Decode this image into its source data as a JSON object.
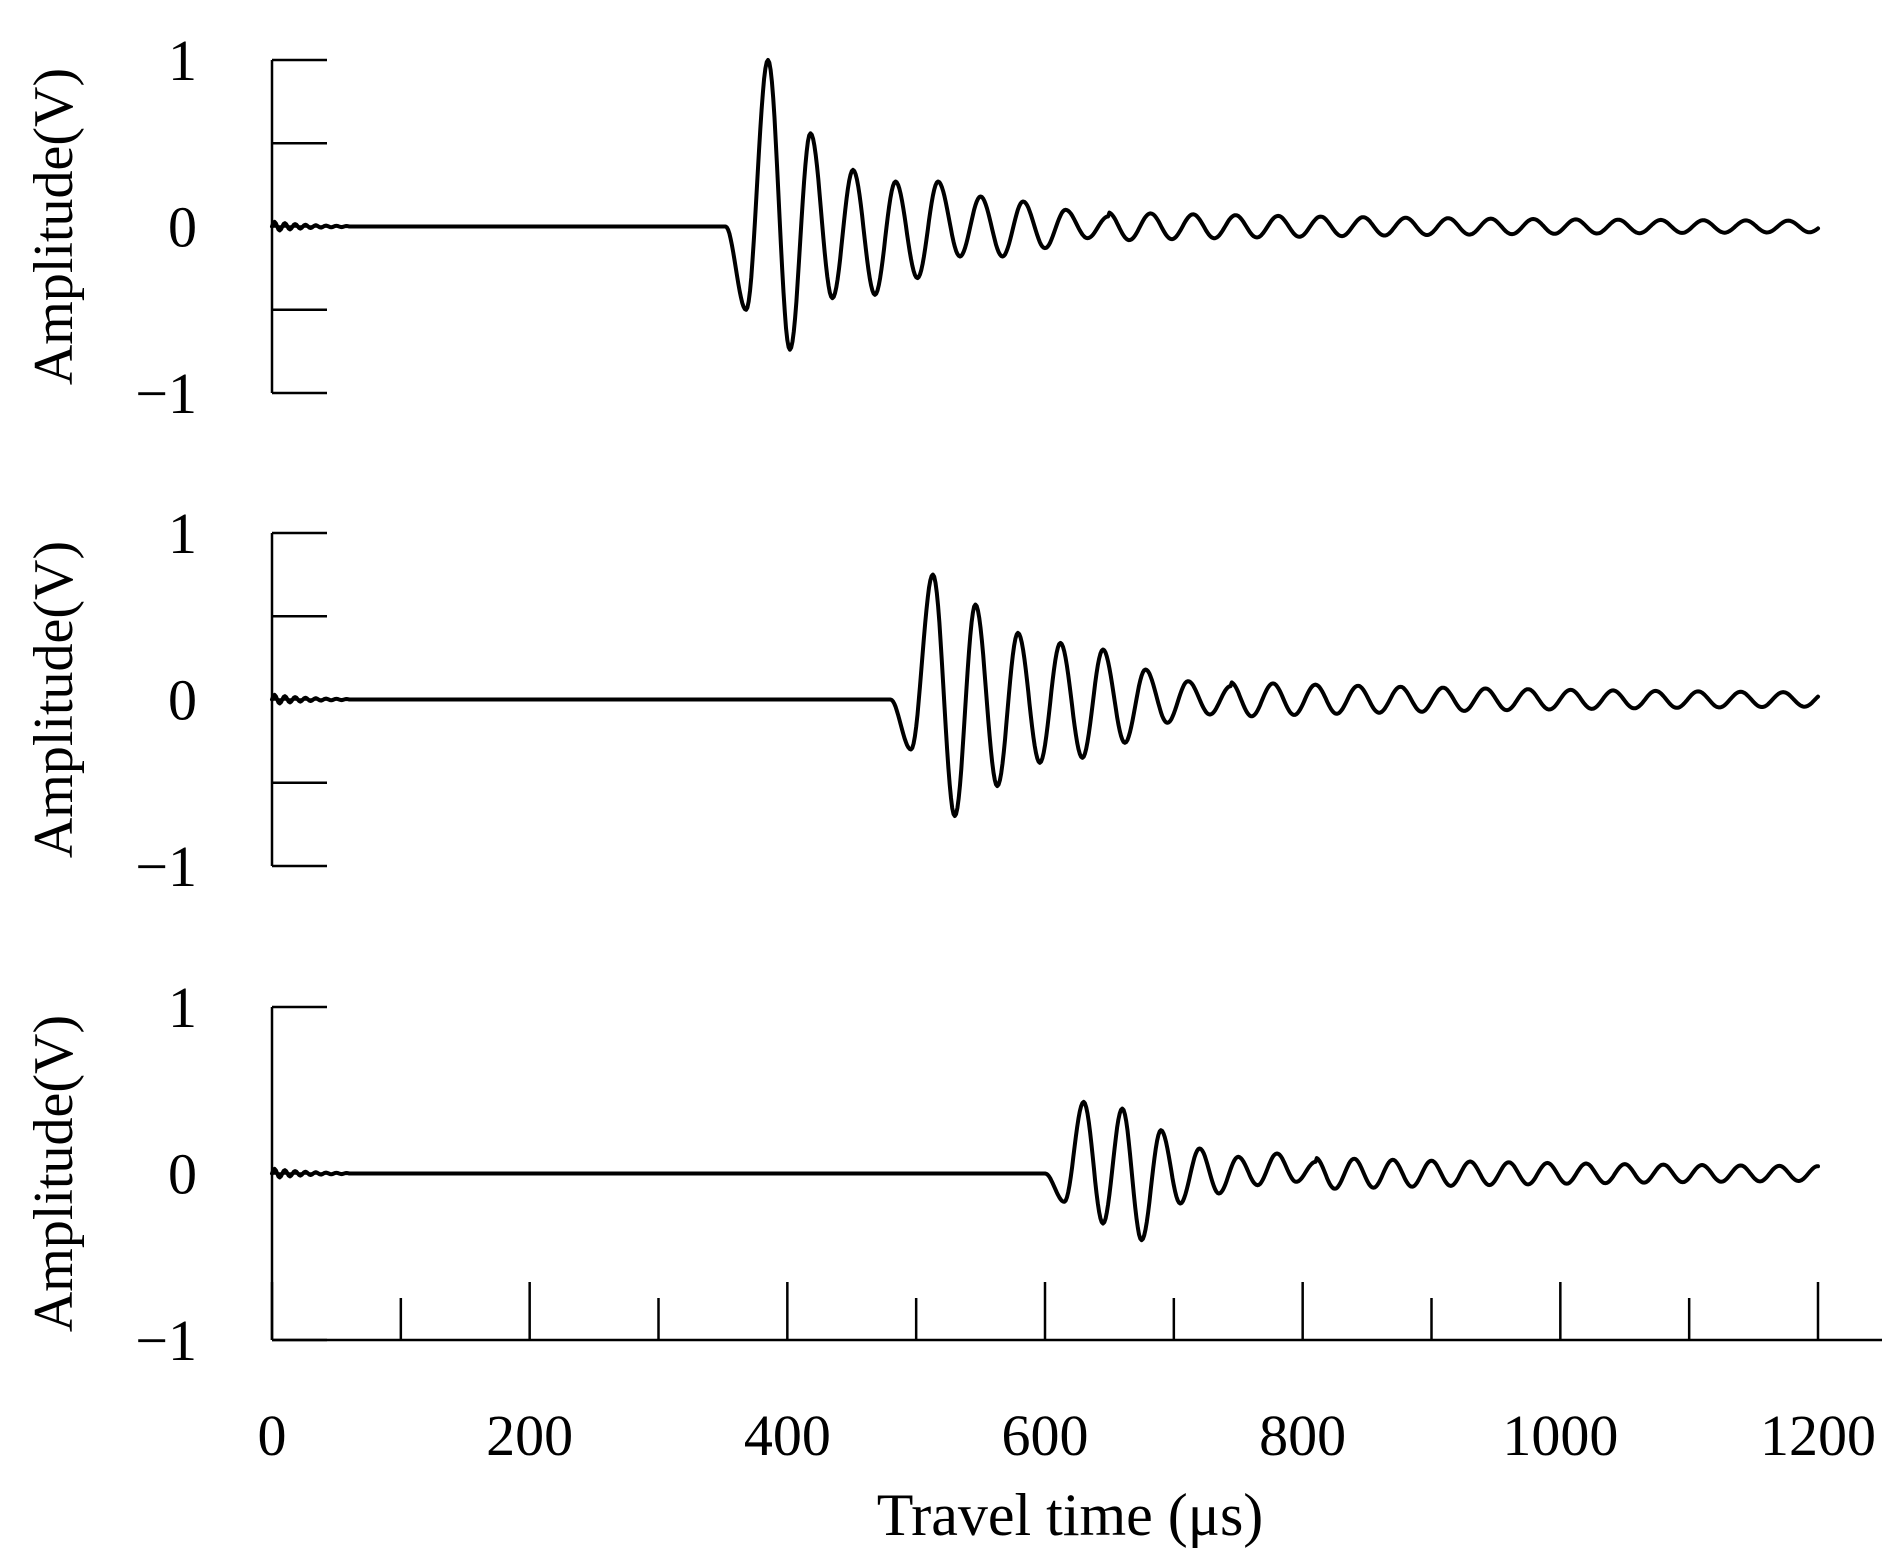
{
  "chart_data": [
    {
      "type": "line",
      "ylabel": "Amplitude(V)",
      "ylim": [
        -1,
        1
      ],
      "y_ticks": [
        -1,
        -0.5,
        0,
        0.5,
        1
      ],
      "y_tick_labels": [
        "−1",
        "",
        "0",
        "",
        "1"
      ],
      "xlim": [
        0,
        1200
      ],
      "series": [
        {
          "onset_us": 352,
          "period_us": 33,
          "x": [
            0,
            352,
            368,
            385,
            402,
            418,
            435,
            451,
            468,
            484,
            501,
            517,
            534,
            550,
            567,
            583,
            600,
            616,
            633,
            649,
            1200
          ],
          "values": [
            0,
            0,
            -0.5,
            1.0,
            -0.74,
            0.56,
            -0.43,
            0.34,
            -0.41,
            0.27,
            -0.31,
            0.27,
            -0.18,
            0.18,
            -0.18,
            0.15,
            -0.13,
            0.1,
            -0.07,
            0.06,
            0
          ]
        }
      ]
    },
    {
      "type": "line",
      "ylabel": "Amplitude(V)",
      "ylim": [
        -1,
        1
      ],
      "y_ticks": [
        -1,
        -0.5,
        0,
        0.5,
        1
      ],
      "y_tick_labels": [
        "−1",
        "",
        "0",
        "",
        "1"
      ],
      "xlim": [
        0,
        1200
      ],
      "series": [
        {
          "onset_us": 480,
          "period_us": 33,
          "x": [
            0,
            480,
            496,
            513,
            530,
            546,
            563,
            579,
            596,
            612,
            629,
            645,
            662,
            678,
            695,
            711,
            728,
            744,
            1200
          ],
          "values": [
            0,
            0,
            -0.3,
            0.75,
            -0.7,
            0.57,
            -0.52,
            0.4,
            -0.38,
            0.34,
            -0.35,
            0.3,
            -0.26,
            0.18,
            -0.14,
            0.11,
            -0.09,
            0.08,
            0
          ]
        }
      ]
    },
    {
      "type": "line",
      "ylabel": "Amplitude(V)",
      "xlabel": "Travel time (μs)",
      "ylim": [
        -1,
        1
      ],
      "y_ticks": [
        -1,
        0,
        1
      ],
      "y_tick_labels": [
        "−1",
        "0",
        "1"
      ],
      "xlim": [
        0,
        1200
      ],
      "x_ticks": [
        0,
        100,
        200,
        300,
        400,
        500,
        600,
        700,
        800,
        900,
        1000,
        1100,
        1200
      ],
      "x_tick_labels": [
        "0",
        "",
        "200",
        "",
        "400",
        "",
        "600",
        "",
        "800",
        "",
        "1000",
        "",
        "1200"
      ],
      "series": [
        {
          "onset_us": 600,
          "period_us": 30,
          "x": [
            0,
            600,
            615,
            630,
            645,
            660,
            675,
            690,
            705,
            720,
            735,
            750,
            765,
            780,
            795,
            810,
            1200
          ],
          "values": [
            0,
            0,
            -0.17,
            0.43,
            -0.3,
            0.39,
            -0.4,
            0.26,
            -0.18,
            0.15,
            -0.12,
            0.1,
            -0.07,
            0.12,
            -0.05,
            0.07,
            0
          ]
        }
      ]
    }
  ]
}
